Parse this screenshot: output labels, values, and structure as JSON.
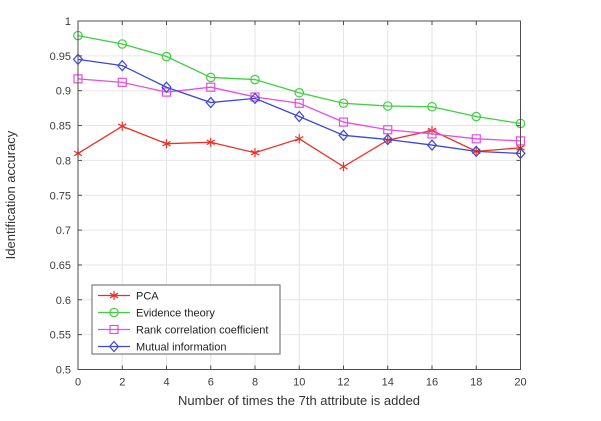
{
  "figure": {
    "background": "#ffffff",
    "axis_box_color": "#4d4d4d",
    "grid_color": "#e6e6e6",
    "tick_text_color": "#3c3c3c",
    "legend_border_color": "#7d7d7d"
  },
  "chart_data": {
    "type": "line",
    "title": "",
    "xlabel": "Number of times the 7th attribute is added",
    "ylabel": "Identification accuracy",
    "xlim": [
      0,
      20
    ],
    "ylim": [
      0.5,
      1
    ],
    "x_ticks": [
      0,
      2,
      4,
      6,
      8,
      10,
      12,
      14,
      16,
      18,
      20
    ],
    "y_ticks": [
      0.5,
      0.55,
      0.6,
      0.65,
      0.7,
      0.75,
      0.8,
      0.85,
      0.9,
      0.95,
      1
    ],
    "grid": true,
    "legend_position": "bottom-left",
    "x": [
      0,
      2,
      4,
      6,
      8,
      10,
      12,
      14,
      16,
      18,
      20
    ],
    "series": [
      {
        "name": "PCA",
        "color": "#ee2e24",
        "marker": "asterisk",
        "values": [
          0.81,
          0.849,
          0.824,
          0.826,
          0.811,
          0.831,
          0.791,
          0.829,
          0.843,
          0.813,
          0.818
        ]
      },
      {
        "name": "Evidence theory",
        "color": "#41ce41",
        "marker": "circle",
        "values": [
          0.979,
          0.967,
          0.949,
          0.919,
          0.916,
          0.897,
          0.882,
          0.878,
          0.877,
          0.863,
          0.853
        ]
      },
      {
        "name": "Rank correlation coefficient",
        "color": "#e44fe0",
        "marker": "square",
        "values": [
          0.917,
          0.912,
          0.898,
          0.905,
          0.891,
          0.882,
          0.855,
          0.844,
          0.838,
          0.831,
          0.828
        ]
      },
      {
        "name": "Mutual information",
        "color": "#3c49d2",
        "marker": "diamond",
        "values": [
          0.945,
          0.936,
          0.905,
          0.883,
          0.889,
          0.863,
          0.836,
          0.83,
          0.822,
          0.813,
          0.81
        ]
      }
    ]
  }
}
